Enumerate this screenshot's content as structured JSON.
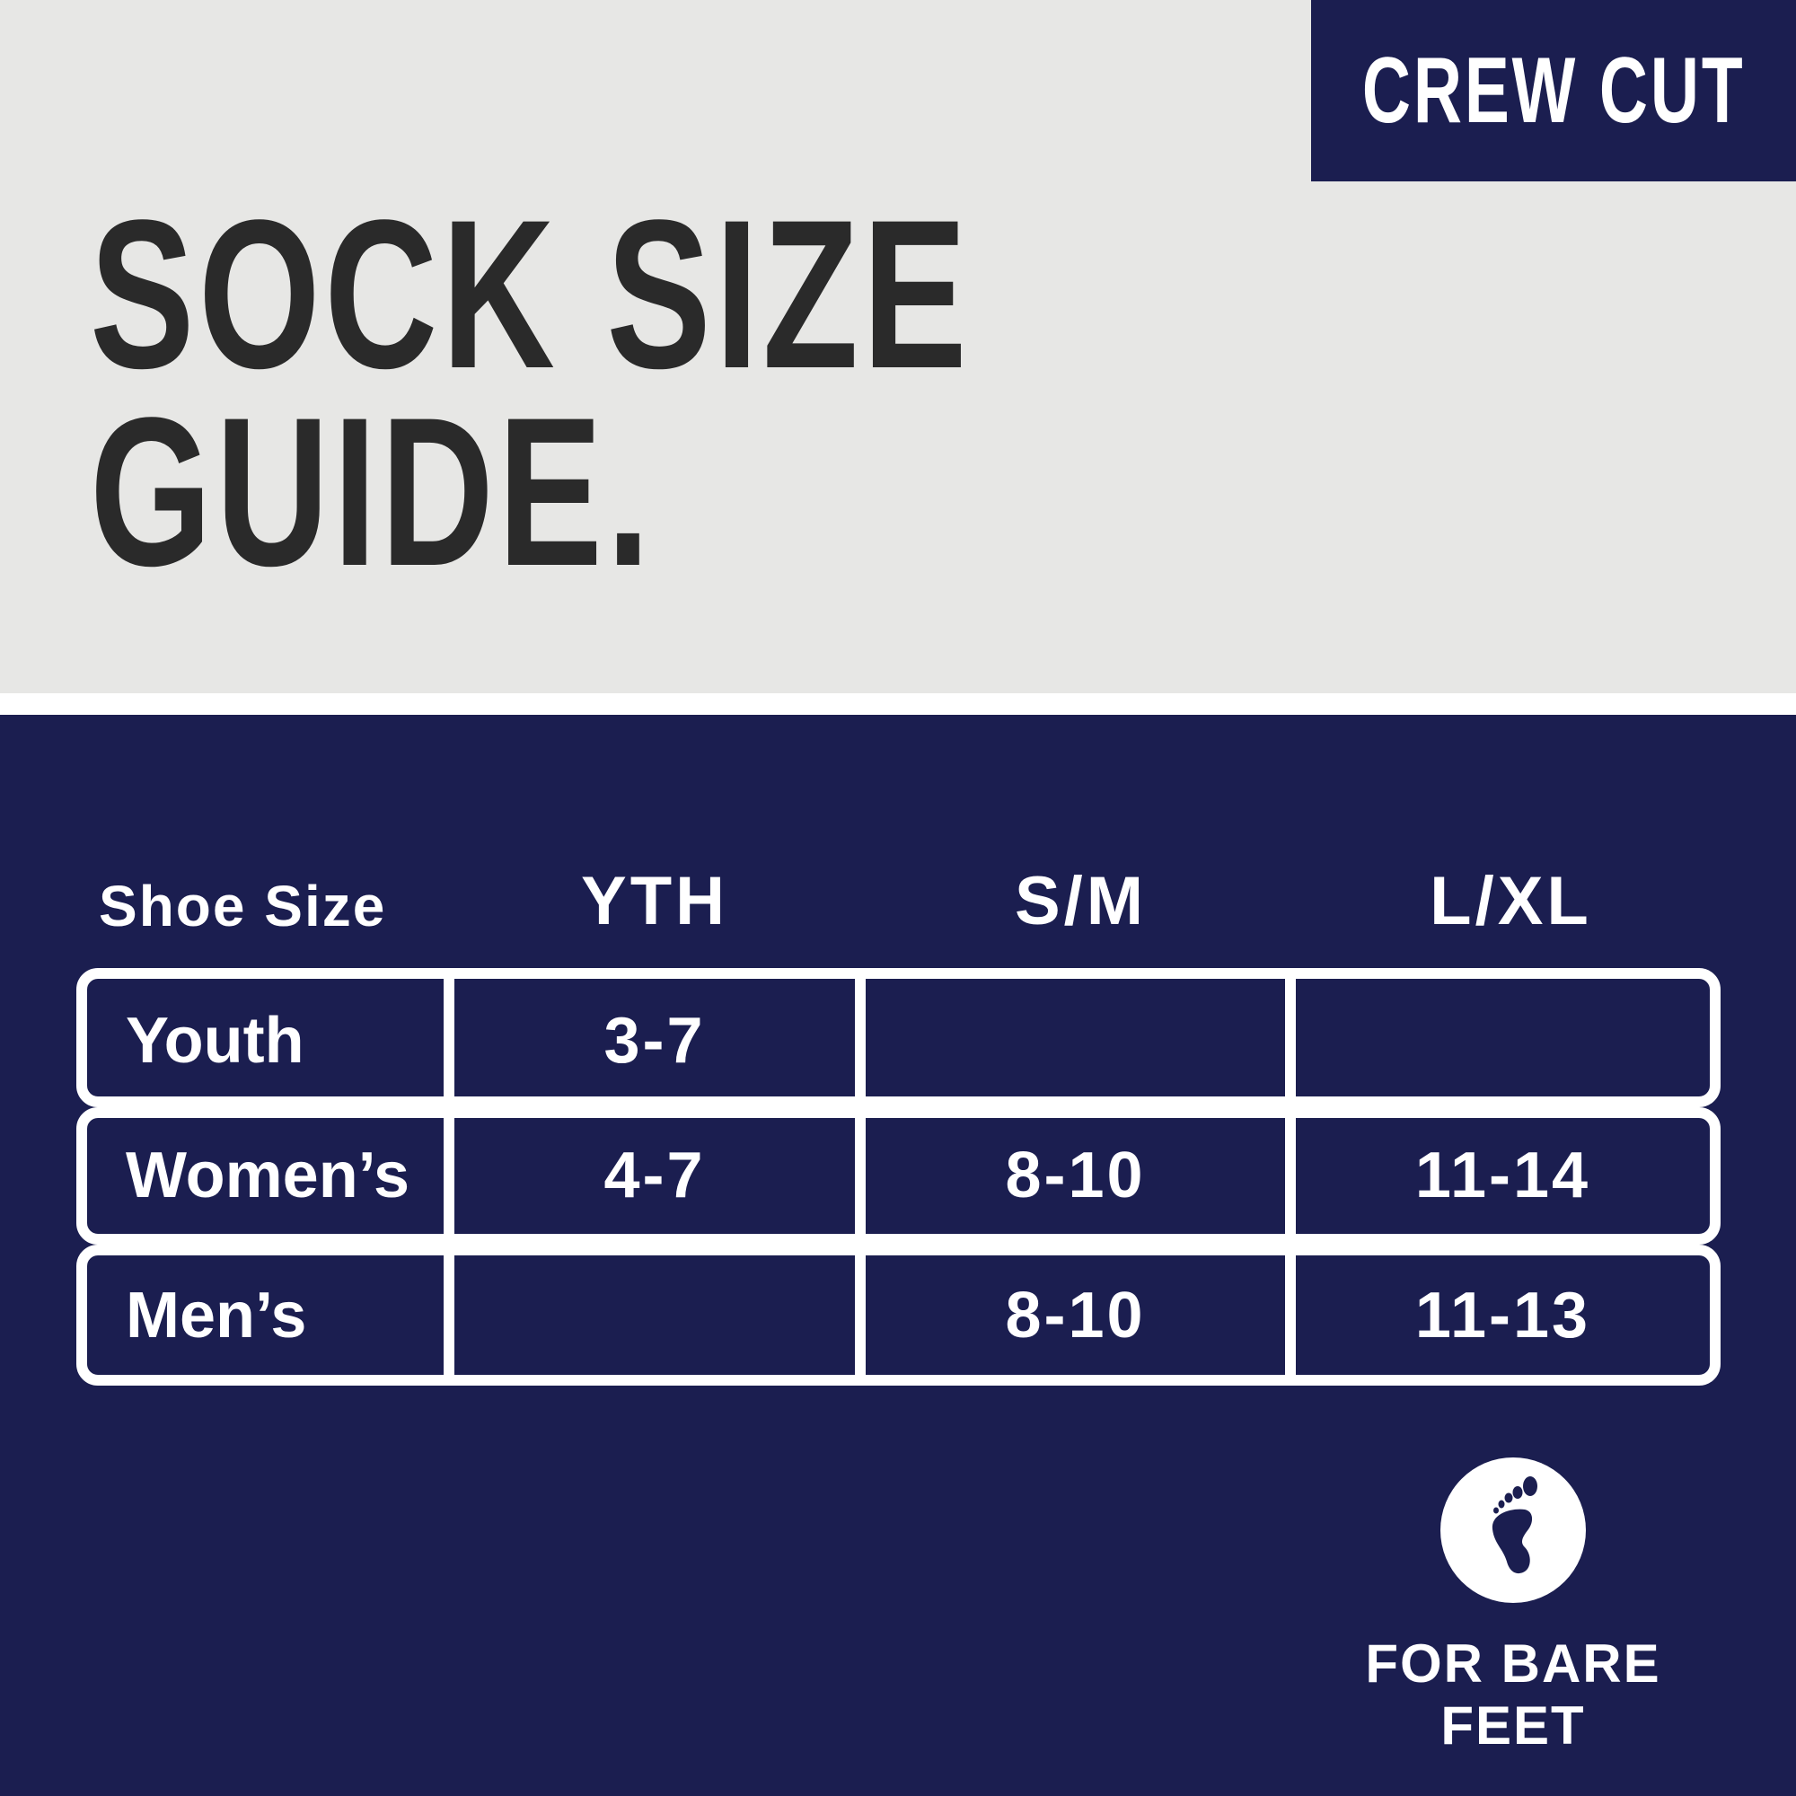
{
  "brand": {
    "label": "CREW CUT"
  },
  "title": {
    "line1": "SOCK SIZE",
    "line2": "GUIDE."
  },
  "table": {
    "header": [
      "Shoe Size",
      "YTH",
      "S/M",
      "L/XL"
    ],
    "rows": [
      {
        "label": "Youth",
        "values": [
          "3-7",
          "",
          ""
        ]
      },
      {
        "label": "Women’s",
        "values": [
          "4-7",
          "8-10",
          "11-14"
        ]
      },
      {
        "label": "Men’s",
        "values": [
          "",
          "8-10",
          "11-13"
        ]
      }
    ]
  },
  "badge": {
    "icon": "bare-foot-icon",
    "label": "FOR BARE FEET"
  },
  "colors": {
    "navy": "#1b1e50",
    "background": "#e7e7e5",
    "title": "#2a2a2a"
  }
}
